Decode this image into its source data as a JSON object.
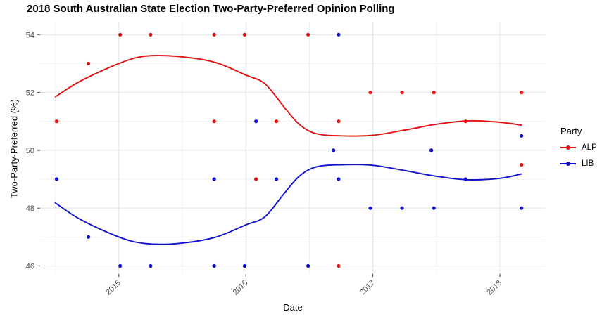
{
  "chart_data": {
    "type": "scatter",
    "title": "2018 South Australian State Election Two-Party-Preferred Opinion Polling",
    "xlabel": "Date",
    "ylabel": "Two-Party-Preferred (%)",
    "xlim": [
      2014.38,
      2018.36
    ],
    "ylim": [
      45.72,
      54.42
    ],
    "x_ticks": [
      {
        "v": 2015,
        "label": "2015"
      },
      {
        "v": 2016,
        "label": "2016"
      },
      {
        "v": 2017,
        "label": "2017"
      },
      {
        "v": 2018,
        "label": "2018"
      }
    ],
    "x_minor": [
      2014.5,
      2015.5,
      2016.5,
      2017.5
    ],
    "y_ticks": [
      {
        "v": 46,
        "label": "46"
      },
      {
        "v": 48,
        "label": "48"
      },
      {
        "v": 50,
        "label": "50"
      },
      {
        "v": 52,
        "label": "52"
      },
      {
        "v": 54,
        "label": "54"
      }
    ],
    "y_minor": [
      47,
      49,
      51,
      53
    ],
    "grid": true,
    "legend": {
      "title": "Party",
      "position": "right"
    },
    "series": [
      {
        "name": "ALP",
        "color": "#e31212",
        "points": [
          [
            2014.51,
            51
          ],
          [
            2014.76,
            53
          ],
          [
            2015.01,
            54
          ],
          [
            2015.25,
            54
          ],
          [
            2015.75,
            54
          ],
          [
            2015.75,
            51
          ],
          [
            2015.99,
            54
          ],
          [
            2016.08,
            49
          ],
          [
            2016.24,
            51
          ],
          [
            2016.49,
            54
          ],
          [
            2016.69,
            50
          ],
          [
            2016.73,
            51
          ],
          [
            2016.73,
            46
          ],
          [
            2016.98,
            52
          ],
          [
            2017.23,
            52
          ],
          [
            2017.46,
            50
          ],
          [
            2017.48,
            52
          ],
          [
            2017.73,
            51
          ],
          [
            2018.17,
            52
          ],
          [
            2018.17,
            49.5
          ]
        ],
        "smooth": [
          [
            2014.5,
            51.85
          ],
          [
            2014.7,
            52.4
          ],
          [
            2015.0,
            53.0
          ],
          [
            2015.2,
            53.25
          ],
          [
            2015.45,
            53.25
          ],
          [
            2015.75,
            53.05
          ],
          [
            2016.0,
            52.6
          ],
          [
            2016.15,
            52.3
          ],
          [
            2016.3,
            51.5
          ],
          [
            2016.42,
            50.9
          ],
          [
            2016.55,
            50.58
          ],
          [
            2016.75,
            50.5
          ],
          [
            2017.0,
            50.52
          ],
          [
            2017.25,
            50.7
          ],
          [
            2017.5,
            50.9
          ],
          [
            2017.75,
            51.02
          ],
          [
            2018.0,
            50.97
          ],
          [
            2018.17,
            50.87
          ]
        ]
      },
      {
        "name": "LIB",
        "color": "#1212cc",
        "points": [
          [
            2014.51,
            49
          ],
          [
            2014.76,
            47
          ],
          [
            2015.01,
            46
          ],
          [
            2015.25,
            46
          ],
          [
            2015.75,
            46
          ],
          [
            2015.75,
            49
          ],
          [
            2015.99,
            46
          ],
          [
            2016.08,
            51
          ],
          [
            2016.24,
            49
          ],
          [
            2016.49,
            46
          ],
          [
            2016.69,
            50
          ],
          [
            2016.73,
            49
          ],
          [
            2016.73,
            54
          ],
          [
            2016.98,
            48
          ],
          [
            2017.23,
            48
          ],
          [
            2017.46,
            50
          ],
          [
            2017.48,
            48
          ],
          [
            2017.73,
            49
          ],
          [
            2018.17,
            48
          ],
          [
            2018.17,
            50.5
          ]
        ],
        "smooth": [
          [
            2014.5,
            48.18
          ],
          [
            2014.7,
            47.6
          ],
          [
            2015.0,
            47.0
          ],
          [
            2015.2,
            46.78
          ],
          [
            2015.45,
            46.77
          ],
          [
            2015.75,
            46.98
          ],
          [
            2016.0,
            47.42
          ],
          [
            2016.15,
            47.7
          ],
          [
            2016.3,
            48.5
          ],
          [
            2016.42,
            49.1
          ],
          [
            2016.55,
            49.42
          ],
          [
            2016.75,
            49.5
          ],
          [
            2017.0,
            49.48
          ],
          [
            2017.25,
            49.3
          ],
          [
            2017.5,
            49.1
          ],
          [
            2017.75,
            48.98
          ],
          [
            2018.0,
            49.03
          ],
          [
            2018.17,
            49.18
          ]
        ]
      }
    ],
    "colors": {
      "background": "#ffffff",
      "grid_major": "#e2e2e2",
      "grid_minor": "#f0f0f0",
      "axis_text": "#4d4d4d",
      "tick_mark": "#333333",
      "text": "#000000"
    }
  }
}
